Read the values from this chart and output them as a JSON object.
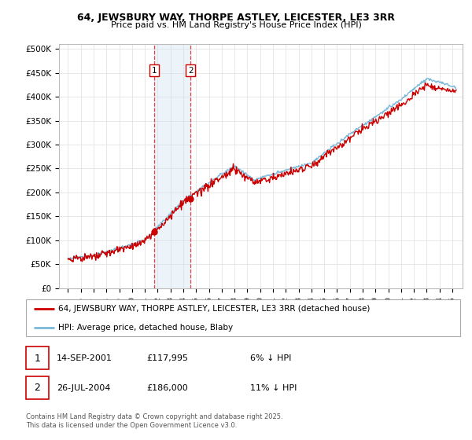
{
  "title": "64, JEWSBURY WAY, THORPE ASTLEY, LEICESTER, LE3 3RR",
  "subtitle": "Price paid vs. HM Land Registry's House Price Index (HPI)",
  "yticks": [
    0,
    50000,
    100000,
    150000,
    200000,
    250000,
    300000,
    350000,
    400000,
    450000,
    500000
  ],
  "ytick_labels": [
    "£0",
    "£50K",
    "£100K",
    "£150K",
    "£200K",
    "£250K",
    "£300K",
    "£350K",
    "£400K",
    "£450K",
    "£500K"
  ],
  "ylim": [
    0,
    510000
  ],
  "hpi_color": "#7ab8d9",
  "price_color": "#cc0000",
  "transaction1_price": 117995,
  "transaction1_x": 2001.71,
  "transaction2_price": 186000,
  "transaction2_x": 2004.57,
  "shade_color": "#cce0f0",
  "dashed_color": "#dd4444",
  "legend_label1": "64, JEWSBURY WAY, THORPE ASTLEY, LEICESTER, LE3 3RR (detached house)",
  "legend_label2": "HPI: Average price, detached house, Blaby",
  "footnote": "Contains HM Land Registry data © Crown copyright and database right 2025.\nThis data is licensed under the Open Government Licence v3.0.",
  "grid_color": "#dddddd"
}
